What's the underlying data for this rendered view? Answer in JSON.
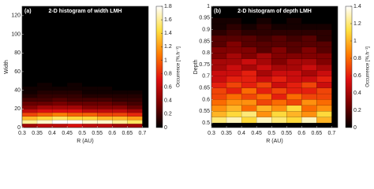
{
  "chart_data": [
    {
      "type": "heatmap",
      "panel": "(a)",
      "title": "2-D histogram of width LMH",
      "xlabel": "R (AU)",
      "ylabel": "Width",
      "colorbar_label": "Occurrence [%.h⁻¹]",
      "colormap": [
        "#000000",
        "#7a0000",
        "#e01010",
        "#ff7a00",
        "#ffe040",
        "#ffffff"
      ],
      "xlim": [
        0.3,
        0.72
      ],
      "xticks": [
        0.3,
        0.35,
        0.4,
        0.45,
        0.5,
        0.55,
        0.6,
        0.65,
        0.7
      ],
      "ylim": [
        0,
        130
      ],
      "yticks": [
        0,
        20,
        40,
        60,
        80,
        100,
        120
      ],
      "clim": [
        0,
        1.8
      ],
      "cticks": [
        0,
        0.2,
        0.4,
        0.6,
        0.8,
        1,
        1.2,
        1.4,
        1.6,
        1.8
      ],
      "xbins": [
        0.3,
        0.35,
        0.4,
        0.45,
        0.5,
        0.55,
        0.6,
        0.65,
        0.7
      ],
      "ybins": [
        0,
        4,
        8,
        12,
        16,
        20,
        24,
        28,
        32,
        36,
        40,
        44,
        48
      ],
      "z": [
        [
          0.5,
          0.6,
          0.6,
          0.7,
          0.6,
          0.6,
          0.5,
          0.5
        ],
        [
          1.6,
          1.7,
          1.8,
          1.8,
          1.7,
          1.7,
          1.6,
          1.5
        ],
        [
          1.3,
          1.4,
          1.5,
          1.4,
          1.4,
          1.3,
          1.3,
          1.2
        ],
        [
          0.9,
          1.0,
          1.1,
          1.0,
          1.0,
          0.9,
          0.9,
          0.8
        ],
        [
          0.6,
          0.7,
          0.7,
          0.7,
          0.6,
          0.6,
          0.6,
          0.5
        ],
        [
          0.4,
          0.5,
          0.5,
          0.5,
          0.4,
          0.4,
          0.4,
          0.3
        ],
        [
          0.3,
          0.3,
          0.35,
          0.3,
          0.3,
          0.3,
          0.25,
          0.2
        ],
        [
          0.2,
          0.2,
          0.25,
          0.2,
          0.2,
          0.2,
          0.15,
          0.15
        ],
        [
          0.1,
          0.15,
          0.15,
          0.15,
          0.1,
          0.1,
          0.1,
          0.1
        ],
        [
          0.05,
          0.1,
          0.1,
          0.1,
          0.05,
          0.05,
          0.05,
          0.05
        ],
        [
          0.05,
          0.05,
          0.05,
          0.05,
          0.05,
          0.05,
          0,
          0
        ],
        [
          0,
          0.05,
          0,
          0.05,
          0,
          0,
          0,
          0
        ]
      ]
    },
    {
      "type": "heatmap",
      "panel": "(b)",
      "title": "2-D histogram of depth LMH",
      "xlabel": "R (AU)",
      "ylabel": "Depth",
      "colorbar_label": "Occurrence [%.h⁻¹]",
      "colormap": [
        "#000000",
        "#7a0000",
        "#e01010",
        "#ff7a00",
        "#ffe040",
        "#ffffff"
      ],
      "xlim": [
        0.3,
        0.72
      ],
      "xticks": [
        0.3,
        0.35,
        0.4,
        0.45,
        0.5,
        0.55,
        0.6,
        0.65,
        0.7
      ],
      "ylim": [
        0.48,
        1.0
      ],
      "yticks": [
        0.5,
        0.55,
        0.6,
        0.65,
        0.7,
        0.75,
        0.8,
        0.85,
        0.9,
        0.95,
        1
      ],
      "clim": [
        0,
        1.4
      ],
      "cticks": [
        0,
        0.2,
        0.4,
        0.6,
        0.8,
        1,
        1.2,
        1.4
      ],
      "xbins": [
        0.3,
        0.35,
        0.4,
        0.45,
        0.5,
        0.55,
        0.6,
        0.65,
        0.7
      ],
      "ybins": [
        0.5,
        0.525,
        0.55,
        0.575,
        0.6,
        0.625,
        0.65,
        0.675,
        0.7,
        0.725,
        0.75,
        0.775,
        0.8,
        0.825,
        0.85,
        0.875,
        0.9,
        0.925,
        0.95
      ],
      "z": [
        [
          1.2,
          1.3,
          1.1,
          1.3,
          1.2,
          1.1,
          1.3,
          1.0
        ],
        [
          1.0,
          1.1,
          1.2,
          0.9,
          1.1,
          1.0,
          0.9,
          1.1
        ],
        [
          0.9,
          1.0,
          0.8,
          1.0,
          0.9,
          1.1,
          0.8,
          0.9
        ],
        [
          0.8,
          0.9,
          0.9,
          0.7,
          0.8,
          0.7,
          0.9,
          0.8
        ],
        [
          0.7,
          0.8,
          0.7,
          0.8,
          0.6,
          0.8,
          0.7,
          0.7
        ],
        [
          0.7,
          0.6,
          0.8,
          0.6,
          0.7,
          0.6,
          0.6,
          0.7
        ],
        [
          0.6,
          0.7,
          0.6,
          0.7,
          0.5,
          0.6,
          0.7,
          0.5
        ],
        [
          0.5,
          0.6,
          0.6,
          0.5,
          0.6,
          0.5,
          0.5,
          0.6
        ],
        [
          0.5,
          0.5,
          0.6,
          0.4,
          0.5,
          0.5,
          0.4,
          0.5
        ],
        [
          0.4,
          0.5,
          0.4,
          0.5,
          0.4,
          0.4,
          0.5,
          0.4
        ],
        [
          0.4,
          0.4,
          0.5,
          0.4,
          0.3,
          0.4,
          0.4,
          0.3
        ],
        [
          0.3,
          0.4,
          0.3,
          0.4,
          0.3,
          0.3,
          0.3,
          0.3
        ],
        [
          0.3,
          0.3,
          0.3,
          0.2,
          0.3,
          0.2,
          0.3,
          0.2
        ],
        [
          0.2,
          0.3,
          0.2,
          0.2,
          0.2,
          0.2,
          0.2,
          0.2
        ],
        [
          0.2,
          0.2,
          0.2,
          0.15,
          0.2,
          0.15,
          0.2,
          0.1
        ],
        [
          0.1,
          0.15,
          0.1,
          0.1,
          0.1,
          0.1,
          0.1,
          0.1
        ],
        [
          0.05,
          0.1,
          0.05,
          0.1,
          0.05,
          0.05,
          0.05,
          0.05
        ],
        [
          0.05,
          0.05,
          0,
          0.05,
          0,
          0.05,
          0,
          0
        ]
      ]
    }
  ]
}
